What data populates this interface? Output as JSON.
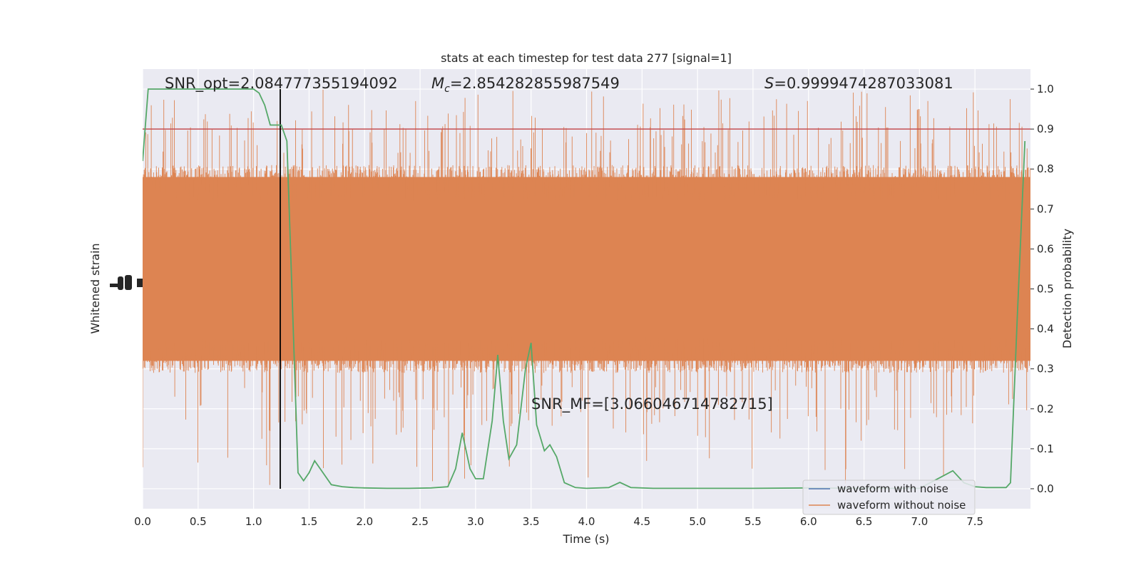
{
  "chart_data": {
    "type": "line",
    "title": "stats at each timestep for test data 277 [signal=1]",
    "xlabel": "Time (s)",
    "ylabel_left": "Whitened strain",
    "ylabel_right": "Detection probability",
    "xlim": [
      0.0,
      8.0
    ],
    "xticks": [
      "0.0",
      "0.5",
      "1.0",
      "1.5",
      "2.0",
      "2.5",
      "3.0",
      "3.5",
      "4.0",
      "4.5",
      "5.0",
      "5.5",
      "6.0",
      "6.5",
      "7.0",
      "7.5"
    ],
    "ylim_right": [
      -0.05,
      1.05
    ],
    "yticks_right": [
      "0.0",
      "0.1",
      "0.2",
      "0.3",
      "0.4",
      "0.5",
      "0.6",
      "0.7",
      "0.8",
      "0.9",
      "1.0"
    ],
    "grid": true,
    "annotations": {
      "snr_opt": "SNR_opt=2.084777355194092",
      "mc_symbol": "M",
      "mc_sub": "c",
      "mc_value": "=2.854282855987549",
      "s_symbol": "S",
      "s_value": "=0.9999474287033081",
      "snr_mf": "SNR_MF=[3.066046714782715]"
    },
    "threshold": {
      "y": 0.9,
      "color": "#c44e52"
    },
    "event_time": 1.24,
    "legend": {
      "placement": "lower-right",
      "entries": [
        {
          "label": "waveform with noise",
          "color": "#4c72b0"
        },
        {
          "label": "waveform without noise",
          "color": "#dd8452"
        }
      ]
    },
    "strain_band": {
      "color": "#dd8452",
      "note": "dense whitened strain noise, mapped to probability axis; solid core approx 0.30-0.80, spikes to approx 0.0-1.0"
    },
    "series": [
      {
        "name": "Detection probability",
        "color": "#55a868",
        "x": [
          0.0,
          0.05,
          0.1,
          0.2,
          0.3,
          0.4,
          0.5,
          0.6,
          0.7,
          0.8,
          0.9,
          1.0,
          1.05,
          1.1,
          1.15,
          1.2,
          1.25,
          1.3,
          1.35,
          1.4,
          1.45,
          1.5,
          1.55,
          1.6,
          1.7,
          1.8,
          1.9,
          2.0,
          2.2,
          2.4,
          2.6,
          2.75,
          2.82,
          2.88,
          2.95,
          3.0,
          3.07,
          3.15,
          3.2,
          3.25,
          3.3,
          3.37,
          3.45,
          3.5,
          3.55,
          3.62,
          3.67,
          3.73,
          3.8,
          3.9,
          4.0,
          4.2,
          4.3,
          4.4,
          4.6,
          5.0,
          5.5,
          6.0,
          6.5,
          7.0,
          7.2,
          7.3,
          7.4,
          7.5,
          7.6,
          7.7,
          7.78,
          7.82,
          7.88,
          7.95
        ],
        "y": [
          0.82,
          1.0,
          1.0,
          1.0,
          1.0,
          1.0,
          1.0,
          1.0,
          1.0,
          1.0,
          1.0,
          1.0,
          0.99,
          0.96,
          0.91,
          0.91,
          0.91,
          0.87,
          0.46,
          0.04,
          0.02,
          0.04,
          0.07,
          0.05,
          0.01,
          0.005,
          0.003,
          0.002,
          0.001,
          0.001,
          0.002,
          0.005,
          0.05,
          0.14,
          0.05,
          0.025,
          0.025,
          0.17,
          0.335,
          0.17,
          0.075,
          0.11,
          0.3,
          0.365,
          0.16,
          0.095,
          0.11,
          0.08,
          0.015,
          0.003,
          0.001,
          0.003,
          0.016,
          0.003,
          0.001,
          0.001,
          0.001,
          0.002,
          0.001,
          0.001,
          0.03,
          0.045,
          0.015,
          0.005,
          0.003,
          0.003,
          0.003,
          0.015,
          0.42,
          0.87
        ]
      }
    ]
  }
}
